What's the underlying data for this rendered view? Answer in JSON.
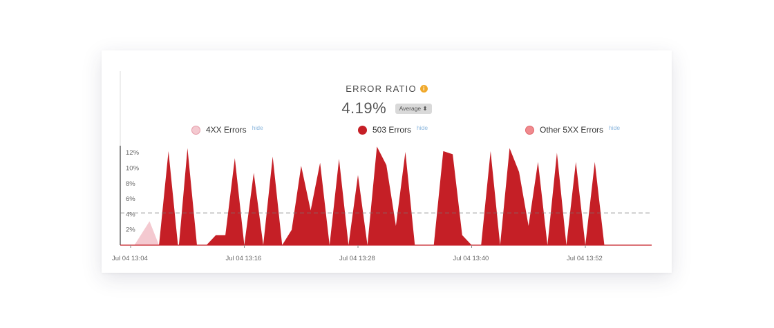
{
  "card": {
    "title": "ERROR RATIO",
    "info_icon": "info-icon",
    "value": "4.19%",
    "aggregation": "Average",
    "aggregation_caret": "⬍"
  },
  "legend": [
    {
      "label": "4XX Errors",
      "hide": "hide",
      "color": "#f4c9d0",
      "border": "#e59aa7"
    },
    {
      "label": "503 Errors",
      "hide": "hide",
      "color": "#c51f26",
      "border": "#c51f26"
    },
    {
      "label": "Other 5XX Errors",
      "hide": "hide",
      "color": "#f08a8e",
      "border": "#e0666b"
    }
  ],
  "chart_data": {
    "type": "area",
    "title": "ERROR RATIO",
    "xlabel": "",
    "ylabel": "",
    "x_unit": "minutes after Jul 04 13:04",
    "x_range": [
      0,
      55
    ],
    "ylim": [
      0,
      13
    ],
    "y_ticks": [
      "2%",
      "4%",
      "6%",
      "8%",
      "10%",
      "12%"
    ],
    "y_tick_values": [
      2,
      4,
      6,
      8,
      10,
      12
    ],
    "x_ticks": [
      "Jul 04 13:04",
      "Jul 04 13:16",
      "Jul 04 13:28",
      "Jul 04 13:40",
      "Jul 04 13:52"
    ],
    "x_tick_values": [
      0,
      12,
      24,
      36,
      48
    ],
    "average_line": 4.19,
    "grid": false,
    "series": [
      {
        "name": "4XX Errors",
        "color": "#f4c9d0",
        "points": [
          [
            0.4,
            0
          ],
          [
            2.0,
            3.1
          ],
          [
            3.0,
            0
          ]
        ]
      },
      {
        "name": "503 Errors",
        "color": "#c51f26",
        "points": [
          [
            3.0,
            0
          ],
          [
            4.0,
            12.2
          ],
          [
            5.0,
            0
          ],
          [
            5.1,
            0
          ],
          [
            6.0,
            12.6
          ],
          [
            7.0,
            0
          ],
          [
            8.0,
            0
          ],
          [
            9.0,
            1.3
          ],
          [
            10.0,
            1.3
          ],
          [
            11.0,
            11.3
          ],
          [
            12.0,
            0
          ],
          [
            13.0,
            9.4
          ],
          [
            14.0,
            0
          ],
          [
            15.0,
            11.5
          ],
          [
            16.0,
            0
          ],
          [
            17.0,
            2.0
          ],
          [
            18.0,
            10.3
          ],
          [
            19.0,
            4.5
          ],
          [
            20.0,
            10.7
          ],
          [
            21.0,
            0
          ],
          [
            22.0,
            11.2
          ],
          [
            23.0,
            0
          ],
          [
            24.0,
            9.1
          ],
          [
            25.0,
            0
          ],
          [
            26.0,
            12.8
          ],
          [
            27.0,
            10.4
          ],
          [
            28.0,
            2.5
          ],
          [
            29.0,
            12.1
          ],
          [
            30.0,
            0
          ],
          [
            32.0,
            0
          ],
          [
            33.0,
            12.2
          ],
          [
            34.0,
            11.8
          ],
          [
            35.0,
            1.3
          ],
          [
            36.0,
            0
          ],
          [
            37.0,
            0
          ],
          [
            38.0,
            12.2
          ],
          [
            39.0,
            0
          ],
          [
            40.0,
            12.6
          ],
          [
            41.0,
            9.5
          ],
          [
            42.0,
            2.5
          ],
          [
            43.0,
            10.8
          ],
          [
            44.0,
            0
          ],
          [
            45.0,
            12.0
          ],
          [
            46.0,
            0
          ],
          [
            47.0,
            10.8
          ],
          [
            48.0,
            0
          ],
          [
            49.0,
            10.8
          ],
          [
            50.0,
            0
          ],
          [
            55.0,
            0
          ]
        ]
      },
      {
        "name": "Other 5XX Errors",
        "color": "#f08a8e",
        "points": [
          [
            0,
            0
          ],
          [
            55,
            0
          ]
        ]
      }
    ]
  }
}
